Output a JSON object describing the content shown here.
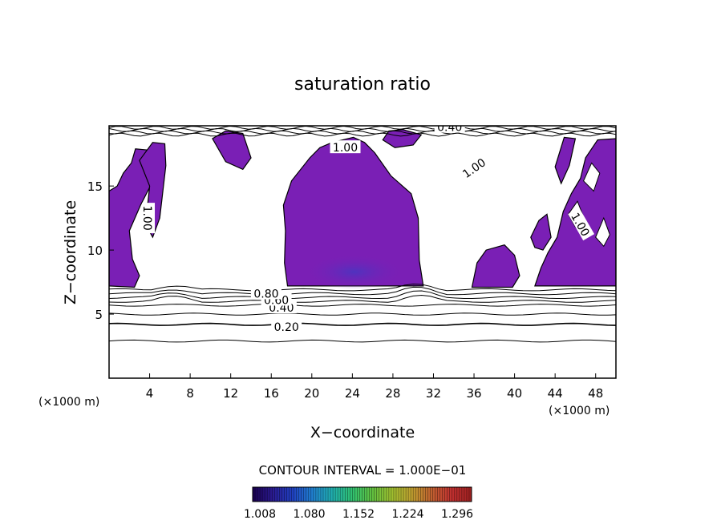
{
  "chart_data": {
    "type": "contour",
    "title": "saturation ratio",
    "xlabel": "X−coordinate",
    "ylabel": "Z−coordinate",
    "x_unit_label": "(×1000 m)",
    "y_unit_label": "(×1000 m)",
    "xlim": [
      0,
      50
    ],
    "ylim": [
      0,
      19.7
    ],
    "x_ticks": [
      4,
      8,
      12,
      16,
      20,
      24,
      28,
      32,
      36,
      40,
      44,
      48
    ],
    "y_ticks": [
      5,
      10,
      15
    ],
    "contour_interval_text": "CONTOUR INTERVAL = 1.000E−01",
    "contour_labels": [
      {
        "text": "0.20",
        "x": 17.5,
        "z": 4.0
      },
      {
        "text": "0.40",
        "x": 17.0,
        "z": 5.5
      },
      {
        "text": "0.60",
        "x": 16.5,
        "z": 6.1
      },
      {
        "text": "0.80",
        "x": 15.5,
        "z": 6.6
      },
      {
        "text": "1.00",
        "x": 23.3,
        "z": 18.0
      },
      {
        "text": "1.00",
        "x": 36.0,
        "z": 16.4
      },
      {
        "text": "1.00",
        "x": 3.8,
        "z": 12.5
      },
      {
        "text": "1.00",
        "x": 46.5,
        "z": 12.0
      },
      {
        "text": "0.40",
        "x": 33.6,
        "z": 19.6
      }
    ],
    "contour_levels_below_cloud": [
      {
        "level": 0.1,
        "z": 2.9
      },
      {
        "level": 0.2,
        "z": 4.2
      },
      {
        "level": 0.3,
        "z": 5.0
      },
      {
        "level": 0.4,
        "z": 5.7
      },
      {
        "level": 0.5,
        "z": 6.0
      },
      {
        "level": 0.6,
        "z": 6.3
      },
      {
        "level": 0.7,
        "z": 6.6
      },
      {
        "level": 0.8,
        "z": 6.9
      }
    ],
    "fill_threshold": 1.0,
    "colorbar": {
      "ticks": [
        "1.008",
        "1.080",
        "1.152",
        "1.224",
        "1.296"
      ],
      "colors": [
        "#1a0050",
        "#2a1a90",
        "#2040c0",
        "#2080d0",
        "#20b0b0",
        "#30c070",
        "#60c040",
        "#a0c030",
        "#c0a030",
        "#c06030",
        "#c03030",
        "#a02020"
      ]
    },
    "fill_color": "#7a1fb5",
    "fill_color_dark": "#5a2ab8"
  }
}
